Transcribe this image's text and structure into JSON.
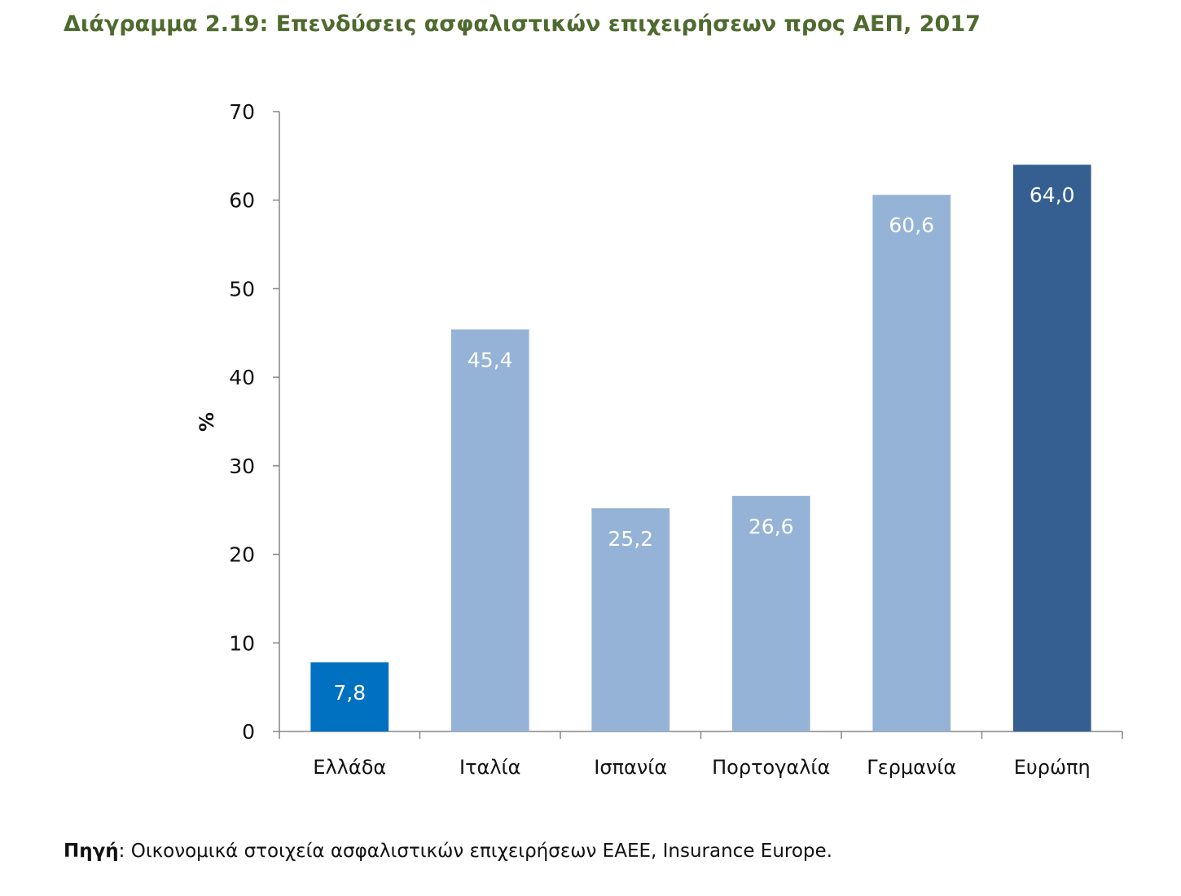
{
  "title": "Διάγραμμα 2.19: Επενδύσεις ασφαλιστικών επιχειρήσεων προς ΑΕΠ, 2017",
  "source": {
    "label": "Πηγή",
    "text": ": Οικονομικά στοιχεία ασφαλιστικών επιχειρήσεων ΕΑΕΕ, Insurance Europe."
  },
  "chart_data": {
    "type": "bar",
    "categories": [
      "Ελλάδα",
      "Ιταλία",
      "Ισπανία",
      "Πορτογαλία",
      "Γερμανία",
      "Ευρώπη"
    ],
    "values": [
      7.8,
      45.4,
      25.2,
      26.6,
      60.6,
      64.0
    ],
    "data_labels": [
      "7,8",
      "45,4",
      "25,2",
      "26,6",
      "60,6",
      "64,0"
    ],
    "colors": [
      "#0070c0",
      "#95b3d7",
      "#95b3d7",
      "#95b3d7",
      "#95b3d7",
      "#355f91"
    ],
    "title": "",
    "xlabel": "",
    "ylabel": "%",
    "ylim": [
      0,
      70
    ],
    "yticks": [
      0,
      10,
      20,
      30,
      40,
      50,
      60,
      70
    ],
    "grid": false,
    "legend": "none"
  }
}
